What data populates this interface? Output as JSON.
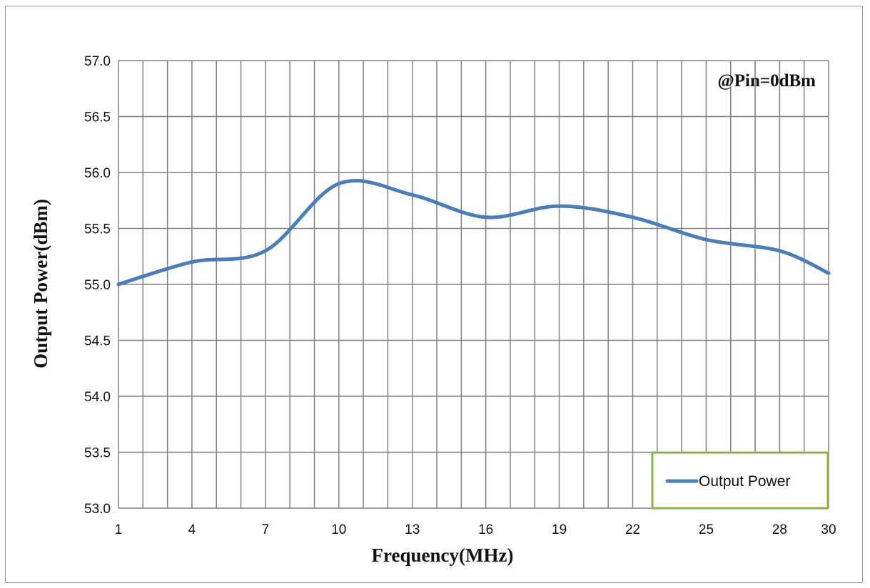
{
  "chart_data": {
    "type": "line",
    "title": "",
    "xlabel": "Frequency(MHz)",
    "ylabel": "Output  Power(dBm)",
    "annotation": "@Pin=0dBm",
    "x_ticks": [
      "1",
      "4",
      "7",
      "10",
      "13",
      "16",
      "19",
      "22",
      "25",
      "28",
      "30"
    ],
    "y_ticks": [
      "53.0",
      "53.5",
      "54.0",
      "54.5",
      "55.0",
      "55.5",
      "56.0",
      "56.5",
      "57.0"
    ],
    "xlim": [
      1,
      30
    ],
    "ylim": [
      53.0,
      57.0
    ],
    "grid": true,
    "legend_position": "bottom-right",
    "series": [
      {
        "name": "Output Power",
        "color": "#4a7ebb",
        "x": [
          1,
          4,
          7,
          10,
          13,
          16,
          19,
          22,
          25,
          28,
          30
        ],
        "values": [
          55.0,
          55.2,
          55.3,
          55.9,
          55.8,
          55.6,
          55.7,
          55.6,
          55.4,
          55.3,
          55.1
        ]
      }
    ],
    "colors": {
      "grid": "#808080",
      "legend_border": "#8cb04f",
      "frame": "#9a9a9a"
    }
  }
}
